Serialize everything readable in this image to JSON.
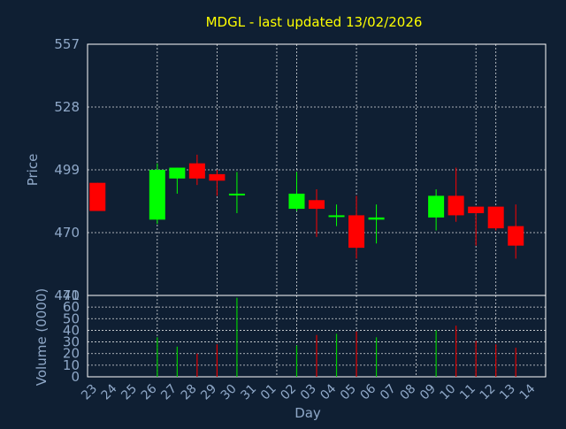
{
  "chart_data": {
    "type": "candlestick",
    "title": "MDGL - last updated 13/02/2026",
    "xlabel": "Day",
    "price_panel": {
      "ylabel": "Price",
      "ylim": [
        441,
        557
      ],
      "yticks": [
        441,
        470,
        499,
        528,
        557
      ],
      "grid": true
    },
    "volume_panel": {
      "ylabel": "Volume (0000)",
      "ylim": [
        0,
        70
      ],
      "yticks": [
        0,
        10,
        20,
        30,
        40,
        50,
        60,
        70
      ],
      "grid": true
    },
    "colors": {
      "up": "#00ff00",
      "down": "#ff0000",
      "volume_up": "#00cc00",
      "volume_down": "#dd0000"
    },
    "days": [
      "23",
      "24",
      "25",
      "26",
      "27",
      "28",
      "29",
      "30",
      "31",
      "01",
      "02",
      "03",
      "04",
      "05",
      "06",
      "07",
      "08",
      "09",
      "10",
      "11",
      "12",
      "13",
      "14"
    ],
    "candles": [
      {
        "day": "23",
        "open": 493,
        "high": 493,
        "low": 480,
        "close": 480,
        "volume": 0
      },
      {
        "day": "26",
        "open": 476,
        "high": 502,
        "low": 474,
        "close": 499,
        "volume": 34
      },
      {
        "day": "27",
        "open": 495,
        "high": 500,
        "low": 488,
        "close": 500,
        "volume": 26
      },
      {
        "day": "28",
        "open": 502,
        "high": 506,
        "low": 492,
        "close": 495,
        "volume": 20
      },
      {
        "day": "29",
        "open": 497,
        "high": 499,
        "low": 487,
        "close": 494,
        "volume": 28
      },
      {
        "day": "30",
        "open": 488,
        "high": 498,
        "low": 479,
        "close": 488,
        "volume": 68
      },
      {
        "day": "02",
        "open": 481,
        "high": 498,
        "low": 480,
        "close": 488,
        "volume": 27
      },
      {
        "day": "03",
        "open": 485,
        "high": 490,
        "low": 468,
        "close": 481,
        "volume": 36
      },
      {
        "day": "04",
        "open": 478,
        "high": 483,
        "low": 473,
        "close": 478,
        "volume": 37
      },
      {
        "day": "05",
        "open": 478,
        "high": 487,
        "low": 458,
        "close": 463,
        "volume": 39
      },
      {
        "day": "06",
        "open": 476,
        "high": 483,
        "low": 465,
        "close": 477,
        "volume": 34
      },
      {
        "day": "09",
        "open": 477,
        "high": 490,
        "low": 471,
        "close": 487,
        "volume": 40
      },
      {
        "day": "10",
        "open": 487,
        "high": 500,
        "low": 475,
        "close": 478,
        "volume": 44
      },
      {
        "day": "11",
        "open": 482,
        "high": 482,
        "low": 464,
        "close": 479,
        "volume": 31
      },
      {
        "day": "12",
        "open": 482,
        "high": 482,
        "low": 471,
        "close": 472,
        "volume": 28
      },
      {
        "day": "13",
        "open": 473,
        "high": 483,
        "low": 458,
        "close": 464,
        "volume": 25
      }
    ]
  }
}
